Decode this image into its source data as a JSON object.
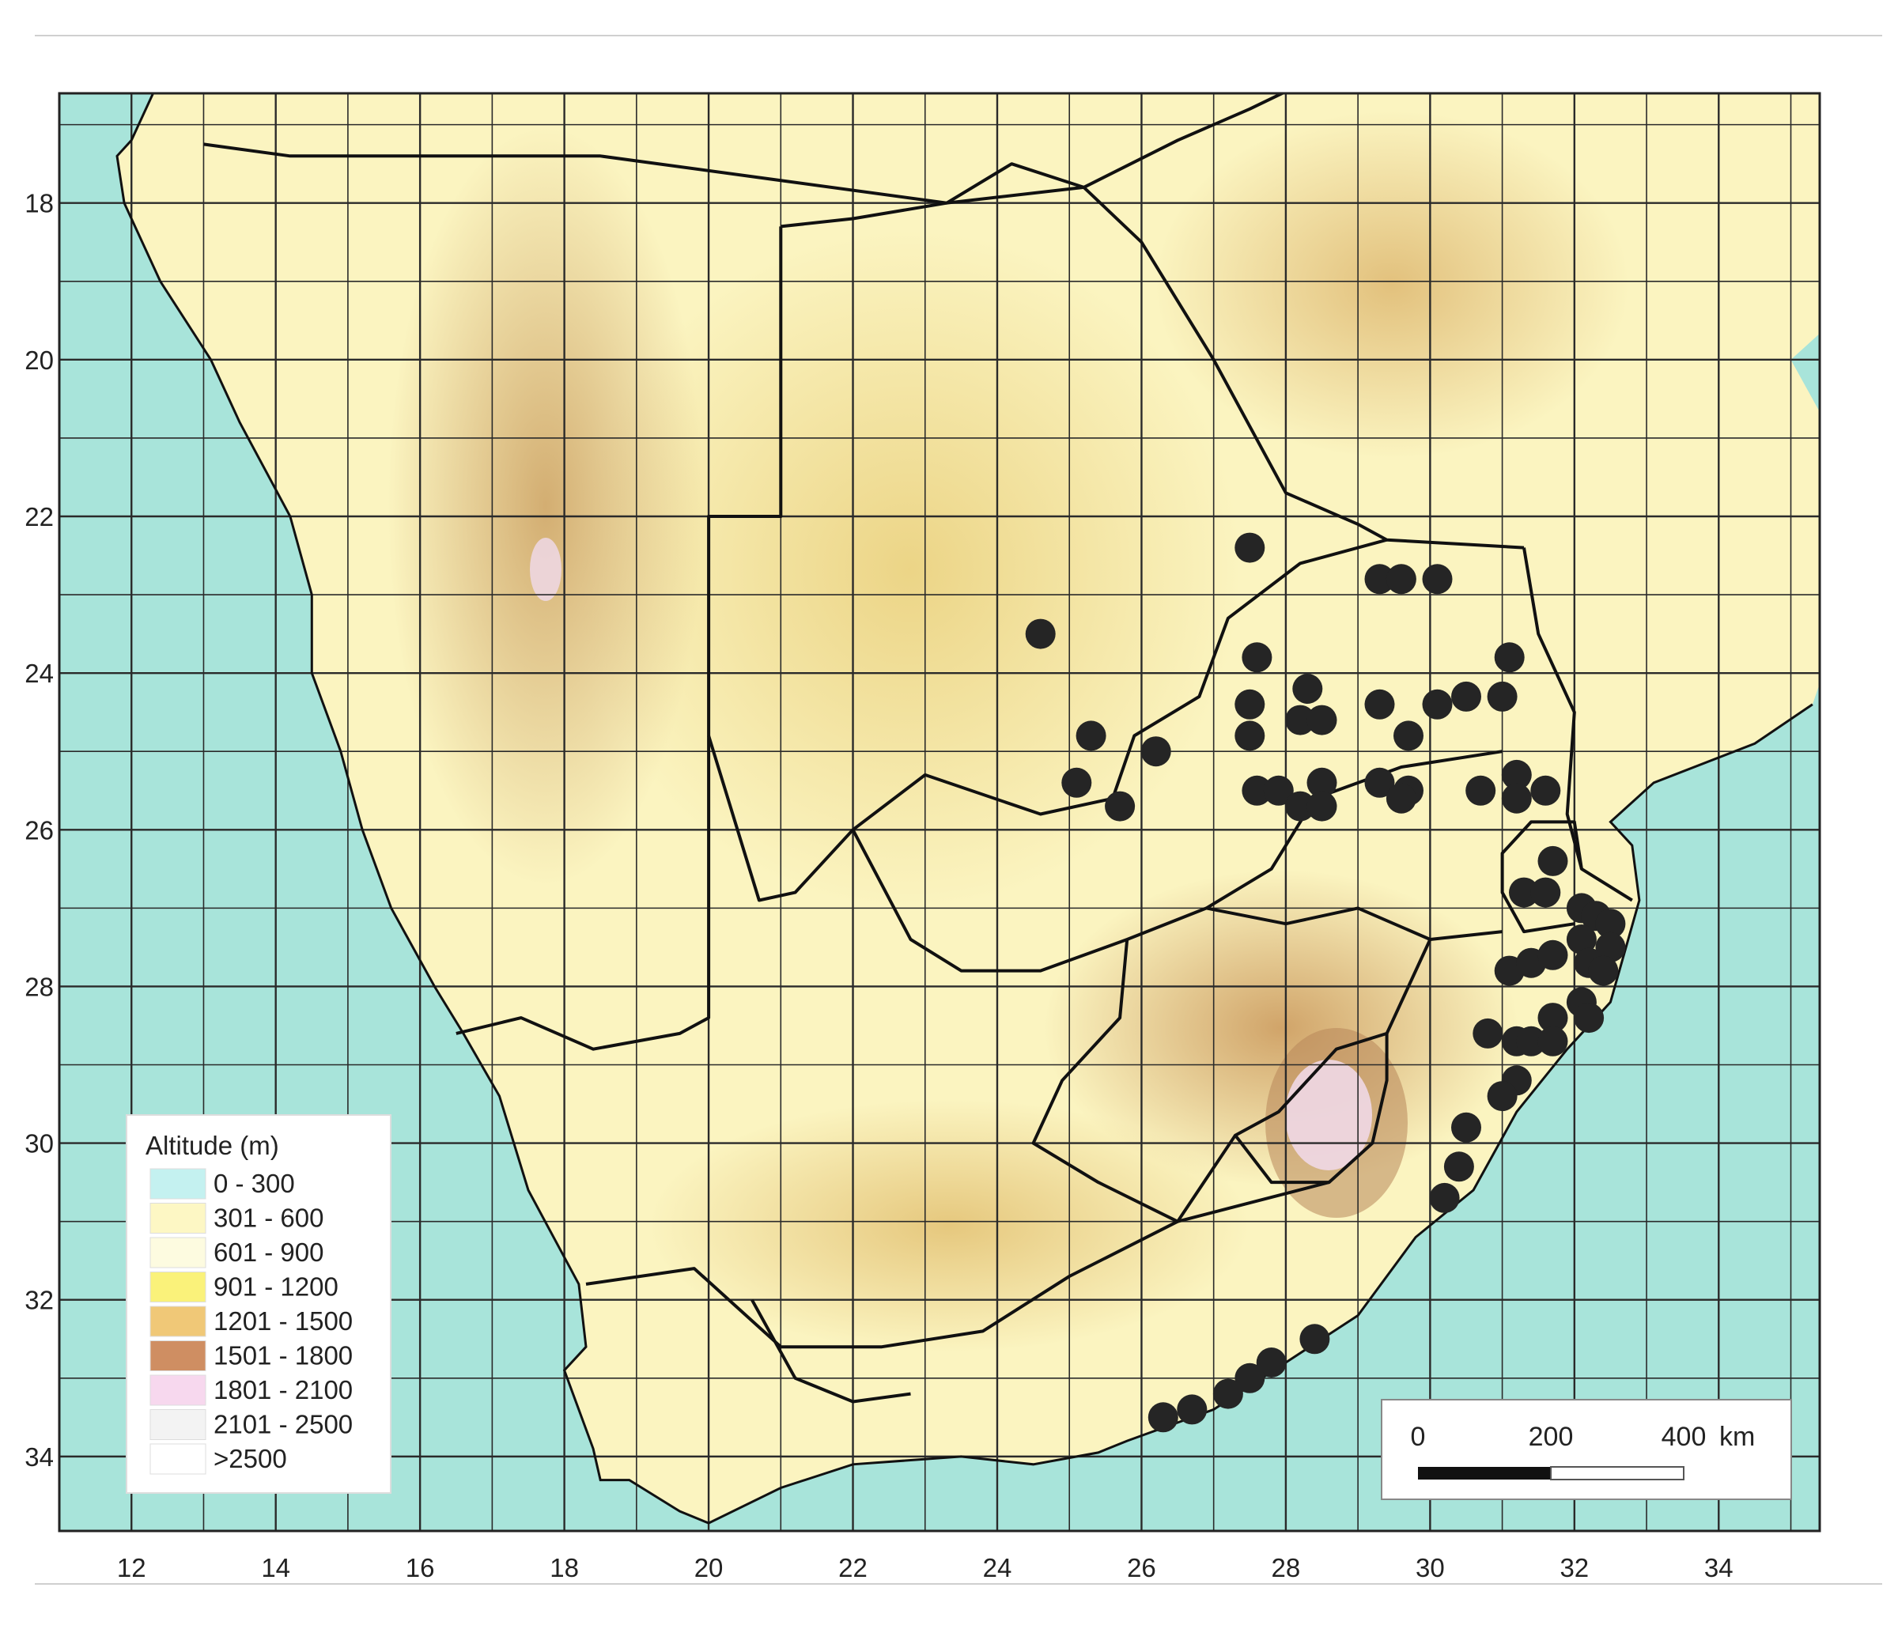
{
  "map": {
    "lon_range": [
      11.0,
      35.4
    ],
    "lat_range": [
      16.6,
      34.95
    ],
    "x_ticks": [
      12,
      14,
      16,
      18,
      20,
      22,
      24,
      26,
      28,
      30,
      32,
      34
    ],
    "y_ticks": [
      18,
      20,
      22,
      24,
      26,
      28,
      30,
      32,
      34
    ],
    "x_tick_labels": [
      "12",
      "14",
      "16",
      "18",
      "20",
      "22",
      "24",
      "26",
      "28",
      "30",
      "32",
      "34"
    ],
    "y_tick_labels": [
      "18",
      "20",
      "22",
      "24",
      "26",
      "28",
      "30",
      "32",
      "34"
    ],
    "grid_step_deg": 1,
    "colors": {
      "ocean": "#a8e4da",
      "lowland": "#fbf4c0",
      "plateau": "#f3de8e",
      "highland": "#d8ad62",
      "mountain": "#b98148",
      "peak": "#efd0e4",
      "grid": "#2a2a2a",
      "border": "#111111",
      "marker": "#252525"
    }
  },
  "legend": {
    "title": "Altitude (m)",
    "items": [
      {
        "label": "0 - 300",
        "color": "#c4f1f0"
      },
      {
        "label": "301 - 600",
        "color": "#fdf7c4"
      },
      {
        "label": "601 - 900",
        "color": "#fdfbe0"
      },
      {
        "label": "901 - 1200",
        "color": "#faf27a"
      },
      {
        "label": "1201 - 1500",
        "color": "#f0c877"
      },
      {
        "label": "1501 - 1800",
        "color": "#cf8e62"
      },
      {
        "label": "1801 - 2100",
        "color": "#f7d8ee"
      },
      {
        "label": "2101 - 2500",
        "color": "#f3f3f3"
      },
      {
        "label": ">2500",
        "color": "#ffffff"
      }
    ]
  },
  "scale_bar": {
    "labels": [
      "0",
      "200",
      "400"
    ],
    "unit": "km",
    "max_km": 400
  },
  "records": [
    [
      27.5,
      22.4
    ],
    [
      24.6,
      23.5
    ],
    [
      29.3,
      22.8
    ],
    [
      29.6,
      22.8
    ],
    [
      30.1,
      22.8
    ],
    [
      27.6,
      23.8
    ],
    [
      31.1,
      23.8
    ],
    [
      27.5,
      24.4
    ],
    [
      28.3,
      24.2
    ],
    [
      29.3,
      24.4
    ],
    [
      30.5,
      24.3
    ],
    [
      31.0,
      24.3
    ],
    [
      30.1,
      24.4
    ],
    [
      25.3,
      24.8
    ],
    [
      27.5,
      24.8
    ],
    [
      28.2,
      24.6
    ],
    [
      28.5,
      24.6
    ],
    [
      29.7,
      24.8
    ],
    [
      26.2,
      25.0
    ],
    [
      25.1,
      25.4
    ],
    [
      28.5,
      25.4
    ],
    [
      29.3,
      25.4
    ],
    [
      27.6,
      25.5
    ],
    [
      27.9,
      25.5
    ],
    [
      29.7,
      25.5
    ],
    [
      30.7,
      25.5
    ],
    [
      31.2,
      25.3
    ],
    [
      31.6,
      25.5
    ],
    [
      25.7,
      25.7
    ],
    [
      28.2,
      25.7
    ],
    [
      28.5,
      25.7
    ],
    [
      29.6,
      25.6
    ],
    [
      31.2,
      25.6
    ],
    [
      31.7,
      26.4
    ],
    [
      31.3,
      26.8
    ],
    [
      31.6,
      26.8
    ],
    [
      32.1,
      27.0
    ],
    [
      32.3,
      27.1
    ],
    [
      32.5,
      27.2
    ],
    [
      32.1,
      27.4
    ],
    [
      32.5,
      27.5
    ],
    [
      32.2,
      27.7
    ],
    [
      32.4,
      27.8
    ],
    [
      31.1,
      27.8
    ],
    [
      31.4,
      27.7
    ],
    [
      31.7,
      27.6
    ],
    [
      32.1,
      28.2
    ],
    [
      31.7,
      28.4
    ],
    [
      32.2,
      28.4
    ],
    [
      30.8,
      28.6
    ],
    [
      31.2,
      28.7
    ],
    [
      31.4,
      28.7
    ],
    [
      31.7,
      28.7
    ],
    [
      31.2,
      29.2
    ],
    [
      31.0,
      29.4
    ],
    [
      30.5,
      29.8
    ],
    [
      30.4,
      30.3
    ],
    [
      30.2,
      30.7
    ],
    [
      28.4,
      32.5
    ],
    [
      27.8,
      32.8
    ],
    [
      27.5,
      33.0
    ],
    [
      27.2,
      33.2
    ],
    [
      26.7,
      33.4
    ],
    [
      26.3,
      33.5
    ]
  ]
}
